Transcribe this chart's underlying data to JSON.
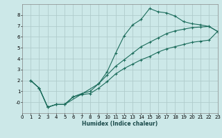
{
  "xlabel": "Humidex (Indice chaleur)",
  "bg_color": "#cce8e8",
  "grid_color": "#b0cccc",
  "line_color": "#1a6b5a",
  "xlim": [
    0,
    23
  ],
  "ylim": [
    -1,
    9
  ],
  "xticks": [
    0,
    1,
    2,
    3,
    4,
    5,
    6,
    7,
    8,
    9,
    10,
    11,
    12,
    13,
    14,
    15,
    16,
    17,
    18,
    19,
    20,
    21,
    22,
    23
  ],
  "yticks": [
    0,
    1,
    2,
    3,
    4,
    5,
    6,
    7,
    8
  ],
  "ytick_labels": [
    "-0",
    "1",
    "2",
    "3",
    "4",
    "5",
    "6",
    "7",
    "8"
  ],
  "curve1_x": [
    1,
    2,
    3,
    4,
    5,
    9,
    10,
    11,
    12,
    13,
    14,
    15,
    16,
    17,
    18,
    19,
    20,
    21,
    22,
    23
  ],
  "curve1_y": [
    2.0,
    1.3,
    -0.45,
    -0.2,
    -0.2,
    1.7,
    2.8,
    4.5,
    6.1,
    7.1,
    7.6,
    8.6,
    8.3,
    8.2,
    7.9,
    7.4,
    7.2,
    7.1,
    6.95,
    6.5
  ],
  "curve2_x": [
    1,
    2,
    3,
    4,
    5,
    6,
    7,
    8,
    9,
    10,
    11,
    12,
    13,
    14,
    15,
    16,
    17,
    18,
    19,
    20,
    21,
    22,
    23
  ],
  "curve2_y": [
    2.0,
    1.3,
    -0.45,
    -0.2,
    -0.2,
    0.5,
    0.8,
    1.0,
    1.7,
    2.5,
    3.3,
    3.9,
    4.5,
    5.1,
    5.5,
    5.9,
    6.3,
    6.55,
    6.7,
    6.85,
    6.9,
    6.95,
    6.5
  ],
  "curve3_x": [
    1,
    2,
    3,
    4,
    5,
    6,
    7,
    8,
    9,
    10,
    11,
    12,
    13,
    14,
    15,
    16,
    17,
    18,
    19,
    20,
    21,
    22,
    23
  ],
  "curve3_y": [
    2.0,
    1.3,
    -0.45,
    -0.2,
    -0.2,
    0.5,
    0.7,
    0.8,
    1.3,
    1.9,
    2.6,
    3.1,
    3.5,
    3.9,
    4.2,
    4.6,
    4.9,
    5.1,
    5.3,
    5.5,
    5.6,
    5.7,
    6.5
  ]
}
